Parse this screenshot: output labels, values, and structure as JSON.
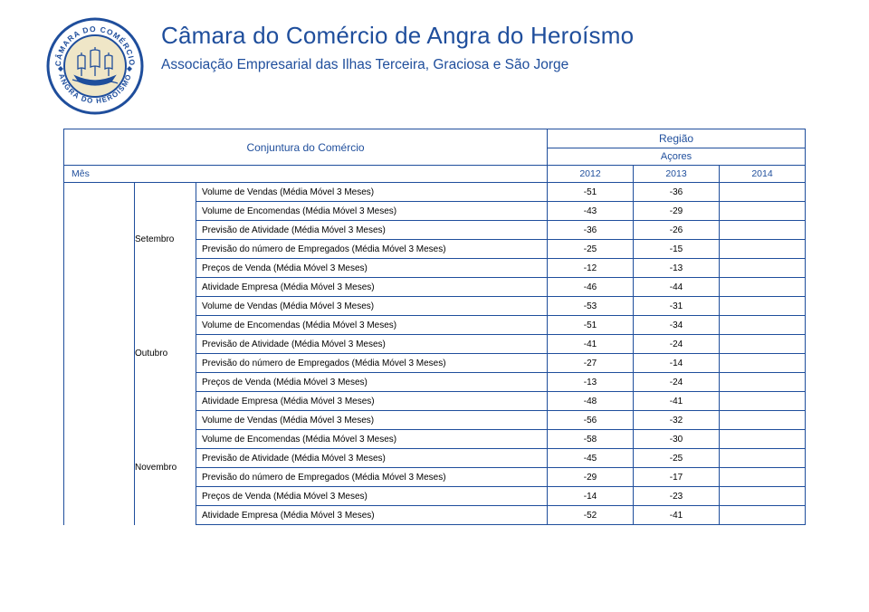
{
  "header": {
    "org_title": "Câmara do Comércio de Angra do Heroísmo",
    "org_subtitle": "Associação Empresarial das Ilhas Terceira, Graciosa e São Jorge"
  },
  "logo": {
    "outer_text_top": "CÂMARA DO COMÉRCIO",
    "outer_text_bottom": "ANGRA DO HEROÍSMO",
    "ring_color": "#1f4e9c",
    "inner_bg": "#efe6c7",
    "ship_color": "#1f4e9c",
    "stars_color": "#1f4e9c"
  },
  "table": {
    "report_title": "Conjuntura do Comércio",
    "region_label": "Região",
    "region_name": "Açores",
    "mes_label": "Mês",
    "years": [
      "2012",
      "2013",
      "2014"
    ],
    "months": [
      {
        "name": "Setembro",
        "rows": [
          {
            "indicator": "Volume de Vendas (Média Móvel 3 Meses)",
            "v": [
              "-51",
              "-36",
              ""
            ]
          },
          {
            "indicator": "Volume de Encomendas (Média Móvel 3 Meses)",
            "v": [
              "-43",
              "-29",
              ""
            ]
          },
          {
            "indicator": "Previsão de Atividade (Média Móvel 3 Meses)",
            "v": [
              "-36",
              "-26",
              ""
            ]
          },
          {
            "indicator": "Previsão do número de Empregados (Média Móvel 3 Meses)",
            "v": [
              "-25",
              "-15",
              ""
            ]
          },
          {
            "indicator": "Preços de Venda (Média Móvel 3 Meses)",
            "v": [
              "-12",
              "-13",
              ""
            ]
          },
          {
            "indicator": "Atividade Empresa (Média Móvel 3 Meses)",
            "v": [
              "-46",
              "-44",
              ""
            ]
          }
        ]
      },
      {
        "name": "Outubro",
        "rows": [
          {
            "indicator": "Volume de Vendas (Média Móvel 3 Meses)",
            "v": [
              "-53",
              "-31",
              ""
            ]
          },
          {
            "indicator": "Volume de Encomendas (Média Móvel 3 Meses)",
            "v": [
              "-51",
              "-34",
              ""
            ]
          },
          {
            "indicator": "Previsão de Atividade (Média Móvel 3 Meses)",
            "v": [
              "-41",
              "-24",
              ""
            ]
          },
          {
            "indicator": "Previsão do número de Empregados (Média Móvel 3 Meses)",
            "v": [
              "-27",
              "-14",
              ""
            ]
          },
          {
            "indicator": "Preços de Venda (Média Móvel 3 Meses)",
            "v": [
              "-13",
              "-24",
              ""
            ]
          },
          {
            "indicator": "Atividade Empresa (Média Móvel 3 Meses)",
            "v": [
              "-48",
              "-41",
              ""
            ]
          }
        ]
      },
      {
        "name": "Novembro",
        "rows": [
          {
            "indicator": "Volume de Vendas (Média Móvel 3 Meses)",
            "v": [
              "-56",
              "-32",
              ""
            ]
          },
          {
            "indicator": "Volume de Encomendas (Média Móvel 3 Meses)",
            "v": [
              "-58",
              "-30",
              ""
            ]
          },
          {
            "indicator": "Previsão de Atividade (Média Móvel 3 Meses)",
            "v": [
              "-45",
              "-25",
              ""
            ]
          },
          {
            "indicator": "Previsão do número de Empregados (Média Móvel 3 Meses)",
            "v": [
              "-29",
              "-17",
              ""
            ]
          },
          {
            "indicator": "Preços de Venda (Média Móvel 3 Meses)",
            "v": [
              "-14",
              "-23",
              ""
            ]
          },
          {
            "indicator": "Atividade Empresa (Média Móvel 3 Meses)",
            "v": [
              "-52",
              "-41",
              ""
            ]
          }
        ]
      }
    ]
  },
  "colors": {
    "brand_blue": "#1f4e9c",
    "page_bg": "#ffffff",
    "text_black": "#000000"
  }
}
